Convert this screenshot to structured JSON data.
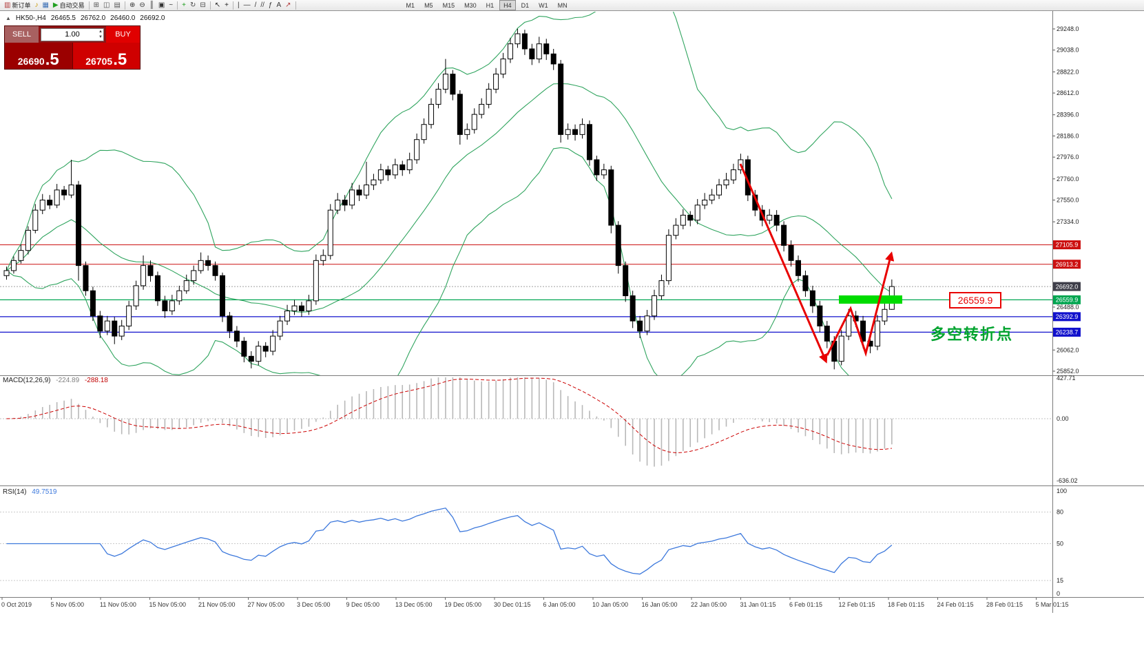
{
  "toolbar": {
    "items": [
      {
        "name": "new-order-button",
        "glyph": "▥",
        "color": "#b03535",
        "label": "新订单"
      },
      {
        "name": "sound-alert-icon",
        "glyph": "♪",
        "color": "#c99700"
      },
      {
        "name": "market-watch-icon",
        "glyph": "▦",
        "color": "#3b6fb5"
      },
      {
        "name": "auto-trading-button",
        "glyph": "▶",
        "color": "#22a022",
        "label": "自动交易"
      },
      {
        "type": "sep"
      },
      {
        "name": "tile-windows-icon",
        "glyph": "⊞",
        "color": "#555555"
      },
      {
        "name": "cascade-windows-icon",
        "glyph": "◫",
        "color": "#555555"
      },
      {
        "name": "arrange-windows-icon",
        "glyph": "▤",
        "color": "#555555"
      },
      {
        "type": "sep"
      },
      {
        "name": "zoom-in-icon",
        "glyph": "⊕",
        "color": "#333333"
      },
      {
        "name": "zoom-out-icon",
        "glyph": "⊖",
        "color": "#333333"
      },
      {
        "name": "bar-chart-icon",
        "glyph": "║",
        "color": "#333333"
      },
      {
        "name": "candlestick-chart-icon",
        "glyph": "▣",
        "color": "#333333"
      },
      {
        "name": "line-chart-icon",
        "glyph": "~",
        "color": "#333333"
      },
      {
        "type": "sep"
      },
      {
        "name": "add-indicator-button",
        "glyph": "+",
        "color": "#1a9c1a"
      },
      {
        "name": "auto-scroll-icon",
        "glyph": "↻",
        "color": "#444444"
      },
      {
        "name": "chart-shift-icon",
        "glyph": "⊟",
        "color": "#444444"
      },
      {
        "type": "sep"
      },
      {
        "name": "cursor-icon",
        "glyph": "↖",
        "color": "#222222"
      },
      {
        "name": "crosshair-icon",
        "glyph": "+",
        "color": "#222222"
      },
      {
        "type": "sep"
      },
      {
        "name": "vertical-line-icon",
        "glyph": "|",
        "color": "#333333"
      },
      {
        "name": "horizontal-line-icon",
        "glyph": "—",
        "color": "#333333"
      },
      {
        "name": "trendline-icon",
        "glyph": "/",
        "color": "#333333"
      },
      {
        "name": "channel-icon",
        "glyph": "//",
        "color": "#333333"
      },
      {
        "name": "fibonacci-icon",
        "glyph": "ƒ",
        "color": "#333333"
      },
      {
        "name": "text-tool-icon",
        "glyph": "A",
        "color": "#333333"
      },
      {
        "name": "arrows-tool-icon",
        "glyph": "↗",
        "color": "#b03535"
      },
      {
        "type": "sep"
      },
      {
        "type": "spacer"
      }
    ],
    "timeframes": [
      "M1",
      "M5",
      "M15",
      "M30",
      "H1",
      "H4",
      "D1",
      "W1",
      "MN"
    ],
    "active_timeframe": "H4"
  },
  "chart_header": {
    "symbol_period": "HK50-,H4",
    "open": "26465.5",
    "high": "26762.0",
    "low": "26460.0",
    "close": "26692.0"
  },
  "trade_panel": {
    "sell_label": "SELL",
    "buy_label": "BUY",
    "volume": "1.00",
    "sell_price_main": "26690",
    "sell_price_pips": ".5",
    "buy_price_main": "26705",
    "buy_price_pips": ".5"
  },
  "price_axis": {
    "ticks": [
      "29248.0",
      "29038.0",
      "28822.0",
      "28612.0",
      "28396.0",
      "28186.0",
      "27976.0",
      "27760.0",
      "27550.0",
      "27334.0",
      "26488.0",
      "26062.0",
      "25852.0"
    ],
    "badges": [
      {
        "value": "27105.9",
        "price": 27105.9,
        "color": "#cc1111"
      },
      {
        "value": "26913.2",
        "price": 26913.2,
        "color": "#cc1111"
      },
      {
        "value": "26692.0",
        "price": 26692.0,
        "color": "#3f3f4a"
      },
      {
        "value": "26559.9",
        "price": 26559.9,
        "color": "#00a651"
      },
      {
        "value": "26392.9",
        "price": 26392.9,
        "color": "#1111cc"
      },
      {
        "value": "26238.7",
        "price": 26238.7,
        "color": "#1111cc"
      }
    ]
  },
  "hlines": [
    {
      "price": 27105.9,
      "color": "#cc1111",
      "width": 1
    },
    {
      "price": 26913.2,
      "color": "#cc1111",
      "width": 1
    },
    {
      "price": 26559.9,
      "color": "#00a651",
      "width": 1.3
    },
    {
      "price": 26392.9,
      "color": "#1111cc",
      "width": 1.3
    },
    {
      "price": 26238.7,
      "color": "#1111cc",
      "width": 1.3
    },
    {
      "price": 26692.0,
      "color": "#a0a0a0",
      "width": 1,
      "dash": "2 2"
    }
  ],
  "time_axis": {
    "labels": [
      "0 Oct 2019",
      "5 Nov 05:00",
      "11 Nov 05:00",
      "15 Nov 05:00",
      "21 Nov 05:00",
      "27 Nov 05:00",
      "3 Dec 05:00",
      "9 Dec 05:00",
      "13 Dec 05:00",
      "19 Dec 05:00",
      "30 Dec 01:15",
      "6 Jan 05:00",
      "10 Jan 05:00",
      "16 Jan 05:00",
      "22 Jan 05:00",
      "31 Jan 01:15",
      "6 Feb 01:15",
      "12 Feb 01:15",
      "18 Feb 01:15",
      "24 Feb 01:15",
      "28 Feb 01:15",
      "5 Mar 01:15"
    ]
  },
  "indicators": {
    "macd": {
      "label": "MACD(12,26,9)",
      "value_main": "-224.89",
      "value_signal": "-288.18",
      "axis": [
        "427.71",
        "0.00",
        "-636.02"
      ],
      "range": [
        -636.02,
        427.71
      ],
      "params": [
        12,
        26,
        9
      ]
    },
    "rsi": {
      "label": "RSI(14)",
      "value": "49.7519",
      "axis": [
        "100",
        "80",
        "50",
        "15",
        "0"
      ],
      "levels": [
        80,
        50,
        15
      ],
      "period": 14
    }
  },
  "annotations": {
    "price_label": "26559.9",
    "turning_point_text": "多空转折点",
    "green_zone_price": 26559.9
  },
  "colors": {
    "bull": "#ffffff",
    "bear": "#000000",
    "outline": "#000000",
    "bollinger": "#2fa45e",
    "macd_hist": "#b8b8b8",
    "macd_signal": "#cc0000",
    "rsi_line": "#3c78dc",
    "annotation_red": "#e80000",
    "annotation_green_box": "#00dc00",
    "annotation_green_text": "#00a32e",
    "axis_text": "#222222",
    "separator": "#7a7a7a"
  },
  "chart_data": {
    "type": "candlestick",
    "symbol": "HK50",
    "period": "H4",
    "ylim": [
      25852,
      29248
    ],
    "bollinger": {
      "period": 20,
      "deviation": 2
    },
    "ohlc": [
      [
        26800,
        26890,
        26760,
        26850
      ],
      [
        26850,
        26990,
        26820,
        26950
      ],
      [
        26950,
        27110,
        26920,
        27050
      ],
      [
        27050,
        27290,
        27010,
        27250
      ],
      [
        27250,
        27510,
        27220,
        27450
      ],
      [
        27450,
        27610,
        27410,
        27550
      ],
      [
        27550,
        27600,
        27460,
        27500
      ],
      [
        27500,
        27710,
        27470,
        27650
      ],
      [
        27650,
        27690,
        27550,
        27600
      ],
      [
        27600,
        27950,
        27570,
        27700
      ],
      [
        27700,
        27740,
        26750,
        26900
      ],
      [
        26900,
        26940,
        26600,
        26650
      ],
      [
        26650,
        26690,
        26350,
        26400
      ],
      [
        26400,
        26450,
        26180,
        26250
      ],
      [
        26250,
        26400,
        26210,
        26350
      ],
      [
        26350,
        26390,
        26120,
        26200
      ],
      [
        26200,
        26360,
        26160,
        26300
      ],
      [
        26300,
        26550,
        26260,
        26500
      ],
      [
        26500,
        26750,
        26460,
        26700
      ],
      [
        26700,
        27000,
        26660,
        26900
      ],
      [
        26900,
        26950,
        26740,
        26800
      ],
      [
        26800,
        26840,
        26500,
        26550
      ],
      [
        26550,
        26600,
        26380,
        26450
      ],
      [
        26450,
        26610,
        26410,
        26550
      ],
      [
        26550,
        26700,
        26510,
        26650
      ],
      [
        26650,
        26810,
        26620,
        26750
      ],
      [
        26750,
        26900,
        26710,
        26850
      ],
      [
        26850,
        27030,
        26820,
        26950
      ],
      [
        26950,
        27000,
        26850,
        26900
      ],
      [
        26900,
        26940,
        26750,
        26800
      ],
      [
        26800,
        26830,
        26340,
        26400
      ],
      [
        26400,
        26440,
        26180,
        26250
      ],
      [
        26250,
        26300,
        26090,
        26150
      ],
      [
        26150,
        26190,
        25940,
        26000
      ],
      [
        26000,
        26050,
        25880,
        25950
      ],
      [
        25950,
        26150,
        25910,
        26100
      ],
      [
        26100,
        26140,
        25990,
        26050
      ],
      [
        26050,
        26260,
        26010,
        26200
      ],
      [
        26200,
        26400,
        26160,
        26350
      ],
      [
        26350,
        26510,
        26310,
        26450
      ],
      [
        26450,
        26560,
        26410,
        26500
      ],
      [
        26500,
        26540,
        26390,
        26450
      ],
      [
        26450,
        26610,
        26410,
        26550
      ],
      [
        26550,
        27010,
        26510,
        26950
      ],
      [
        26950,
        27060,
        26900,
        27000
      ],
      [
        27000,
        27510,
        26960,
        27450
      ],
      [
        27450,
        27620,
        27410,
        27550
      ],
      [
        27550,
        27600,
        27440,
        27500
      ],
      [
        27500,
        27720,
        27460,
        27650
      ],
      [
        27650,
        27700,
        27540,
        27600
      ],
      [
        27600,
        27930,
        27560,
        27700
      ],
      [
        27700,
        27810,
        27650,
        27750
      ],
      [
        27750,
        27910,
        27710,
        27850
      ],
      [
        27850,
        27890,
        27740,
        27800
      ],
      [
        27800,
        27960,
        27760,
        27900
      ],
      [
        27900,
        27940,
        27790,
        27850
      ],
      [
        27850,
        28020,
        27810,
        27950
      ],
      [
        27950,
        28210,
        27910,
        28150
      ],
      [
        28150,
        28360,
        28110,
        28300
      ],
      [
        28300,
        28560,
        28260,
        28500
      ],
      [
        28500,
        28710,
        28460,
        28650
      ],
      [
        28650,
        28950,
        28610,
        28800
      ],
      [
        28800,
        28840,
        28540,
        28600
      ],
      [
        28600,
        28640,
        28100,
        28200
      ],
      [
        28200,
        28310,
        28150,
        28250
      ],
      [
        28250,
        28460,
        28210,
        28400
      ],
      [
        28400,
        28560,
        28360,
        28500
      ],
      [
        28500,
        28710,
        28460,
        28650
      ],
      [
        28650,
        28860,
        28610,
        28800
      ],
      [
        28800,
        29010,
        28760,
        28950
      ],
      [
        28950,
        29160,
        28910,
        29100
      ],
      [
        29100,
        29250,
        29060,
        29200
      ],
      [
        29200,
        29240,
        28990,
        29050
      ],
      [
        29050,
        29100,
        28890,
        28950
      ],
      [
        28950,
        29170,
        28910,
        29100
      ],
      [
        29100,
        29150,
        28940,
        29000
      ],
      [
        29000,
        29050,
        28840,
        28900
      ],
      [
        28900,
        28940,
        28120,
        28200
      ],
      [
        28200,
        28310,
        28150,
        28250
      ],
      [
        28250,
        28300,
        28140,
        28200
      ],
      [
        28200,
        28360,
        28160,
        28300
      ],
      [
        28300,
        28340,
        27890,
        27950
      ],
      [
        27950,
        27990,
        27740,
        27800
      ],
      [
        27800,
        27910,
        27760,
        27850
      ],
      [
        27850,
        27890,
        27220,
        27300
      ],
      [
        27300,
        27340,
        26820,
        26900
      ],
      [
        26900,
        26940,
        26540,
        26600
      ],
      [
        26600,
        26650,
        26280,
        26350
      ],
      [
        26350,
        26400,
        26180,
        26250
      ],
      [
        26250,
        26460,
        26210,
        26400
      ],
      [
        26400,
        26660,
        26360,
        26600
      ],
      [
        26600,
        26810,
        26560,
        26750
      ],
      [
        26750,
        27260,
        26710,
        27200
      ],
      [
        27200,
        27370,
        27160,
        27300
      ],
      [
        27300,
        27460,
        27260,
        27400
      ],
      [
        27400,
        27440,
        27290,
        27350
      ],
      [
        27350,
        27560,
        27310,
        27500
      ],
      [
        27500,
        27620,
        27460,
        27550
      ],
      [
        27550,
        27660,
        27510,
        27600
      ],
      [
        27600,
        27760,
        27560,
        27700
      ],
      [
        27700,
        27820,
        27660,
        27750
      ],
      [
        27750,
        27910,
        27710,
        27850
      ],
      [
        27850,
        28010,
        27810,
        27950
      ],
      [
        27950,
        27990,
        27540,
        27600
      ],
      [
        27600,
        27650,
        27390,
        27450
      ],
      [
        27450,
        27500,
        27290,
        27350
      ],
      [
        27350,
        27460,
        27310,
        27400
      ],
      [
        27400,
        27450,
        27240,
        27300
      ],
      [
        27300,
        27340,
        27040,
        27100
      ],
      [
        27100,
        27150,
        26890,
        26950
      ],
      [
        26950,
        27000,
        26740,
        26800
      ],
      [
        26800,
        26850,
        26590,
        26650
      ],
      [
        26650,
        26700,
        26430,
        26500
      ],
      [
        26500,
        26550,
        26240,
        26300
      ],
      [
        26300,
        26350,
        26080,
        26150
      ],
      [
        26150,
        26200,
        25870,
        25950
      ],
      [
        25950,
        26260,
        25910,
        26200
      ],
      [
        26200,
        26470,
        26160,
        26400
      ],
      [
        26400,
        26450,
        26290,
        26350
      ],
      [
        26350,
        26400,
        26080,
        26150
      ],
      [
        26150,
        26200,
        26030,
        26100
      ],
      [
        26100,
        26410,
        26060,
        26350
      ],
      [
        26350,
        26530,
        26310,
        26465
      ],
      [
        26465.5,
        26762,
        26460,
        26692
      ]
    ]
  }
}
